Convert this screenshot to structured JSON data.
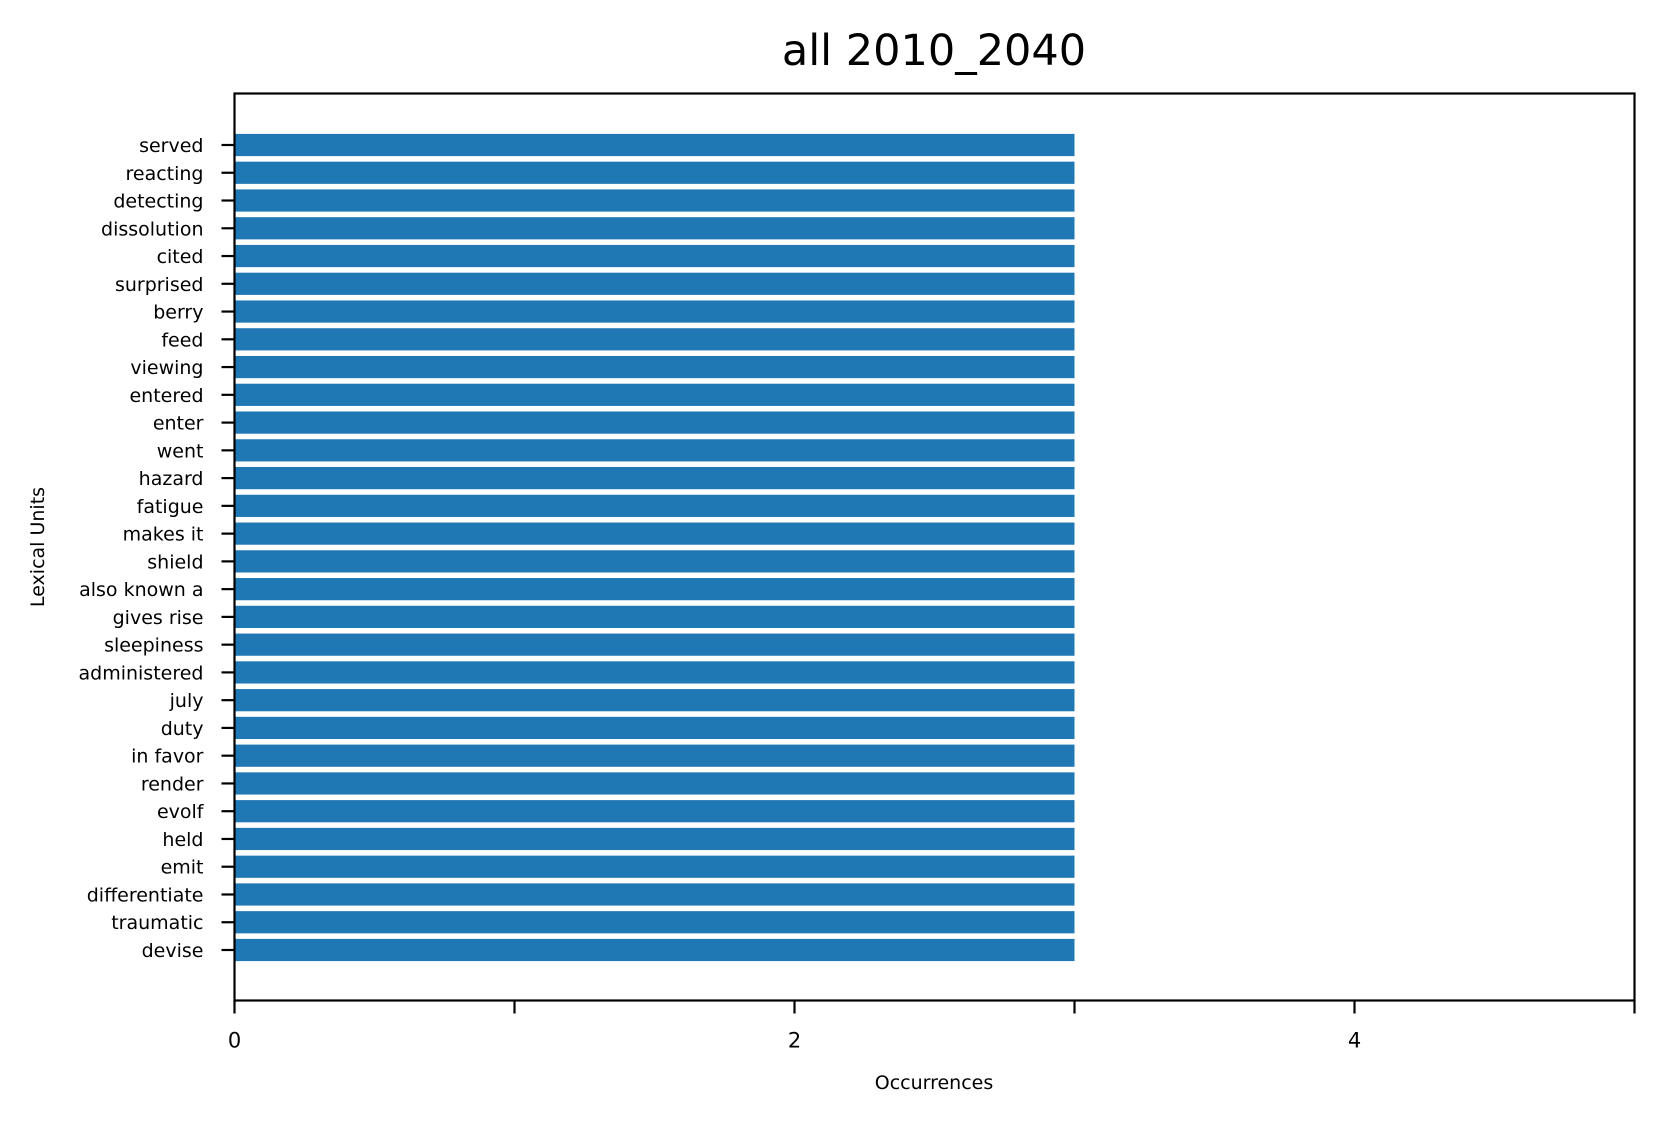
{
  "chart_data": {
    "type": "bar",
    "orientation": "horizontal",
    "title": "all 2010_2040",
    "xlabel": "Occurrences",
    "ylabel": "Lexical Units",
    "categories": [
      "served",
      "reacting",
      "detecting",
      "dissolution",
      "cited",
      "surprised",
      "berry",
      "feed",
      "viewing",
      "entered",
      "enter",
      "went",
      "hazard",
      "fatigue",
      "makes it",
      "shield",
      "also known a",
      "gives rise",
      "sleepiness",
      "administered",
      "july",
      "duty",
      "in favor",
      "render",
      "evolf",
      "held",
      "emit",
      "differentiate",
      "traumatic",
      "devise"
    ],
    "values": [
      3,
      3,
      3,
      3,
      3,
      3,
      3,
      3,
      3,
      3,
      3,
      3,
      3,
      3,
      3,
      3,
      3,
      3,
      3,
      3,
      3,
      3,
      3,
      3,
      3,
      3,
      3,
      3,
      3,
      3
    ],
    "xlim": [
      0,
      5
    ],
    "xticks": [
      0,
      1,
      2,
      3,
      4,
      5
    ],
    "xtick_labels": [
      "0",
      "",
      "2",
      "",
      "4",
      ""
    ],
    "grid": false,
    "legend": "none",
    "bar_color": "#1f77b4"
  }
}
